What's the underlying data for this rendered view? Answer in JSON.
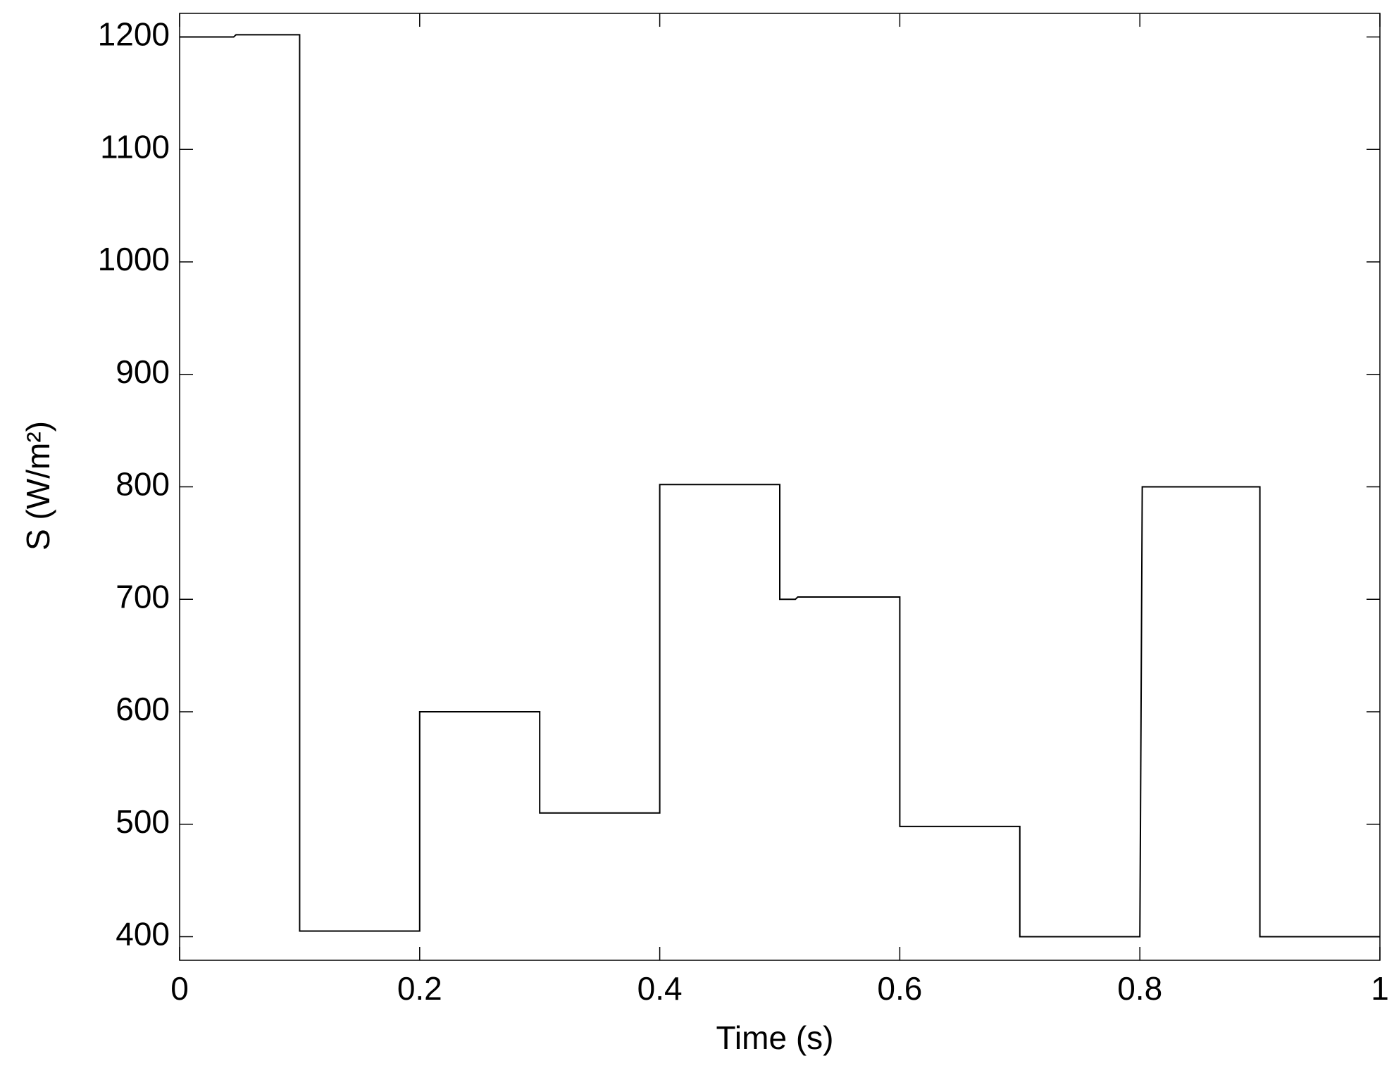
{
  "chart_data": {
    "type": "line",
    "xlabel": "Time (s)",
    "ylabel": "S (W/m²)",
    "series": [
      {
        "color": "#000000",
        "x": [
          0,
          0.045,
          0.047,
          0.1,
          0.1,
          0.2,
          0.2,
          0.3,
          0.3,
          0.4,
          0.4,
          0.5,
          0.5,
          0.513,
          0.515,
          0.6,
          0.6,
          0.7,
          0.7,
          0.8,
          0.802,
          0.9,
          0.9,
          1
        ],
        "values": [
          1200,
          1200,
          1202,
          1202,
          405,
          405,
          600,
          600,
          510,
          510,
          802,
          802,
          700,
          700,
          702,
          702,
          498,
          498,
          400,
          400,
          800,
          800,
          400,
          400
        ]
      }
    ],
    "xlim": [
      0,
      1
    ],
    "xticks": [
      0,
      0.2,
      0.4,
      0.6,
      0.8,
      1
    ],
    "ylim": [
      379,
      1221
    ],
    "yticks": [
      400,
      500,
      600,
      700,
      800,
      900,
      1000,
      1100,
      1200
    ],
    "grid": false
  }
}
